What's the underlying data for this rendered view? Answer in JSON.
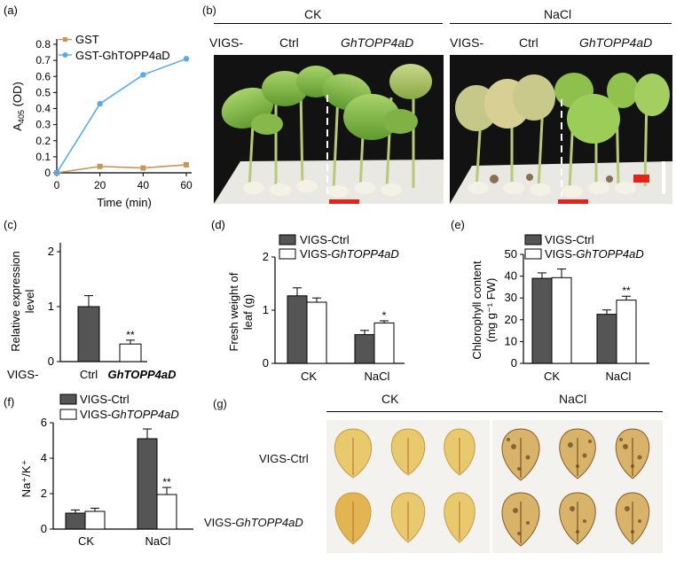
{
  "panels": {
    "a": {
      "label": "(a)",
      "chart_data": {
        "type": "line",
        "x": [
          0,
          20,
          40,
          60
        ],
        "series": [
          {
            "name": "GST",
            "values": [
              0.0,
              0.04,
              0.03,
              0.05
            ],
            "color": "#c8955a"
          },
          {
            "name": "GST-GhTOPP4aD",
            "values": [
              0.0,
              0.43,
              0.61,
              0.71
            ],
            "color": "#5aa8f0"
          }
        ],
        "xlabel": "Time (min)",
        "ylabel_main": "A",
        "ylabel_sub": "405",
        "ylabel_tail": " (OD)",
        "xticks": [
          "0",
          "20",
          "40",
          "60"
        ],
        "yticks": [
          "0",
          "0.1",
          "0.2",
          "0.3",
          "0.4",
          "0.5",
          "0.6",
          "0.7",
          "0.8"
        ],
        "ylim": [
          0,
          0.8
        ],
        "xlim": [
          0,
          60
        ]
      }
    },
    "b": {
      "label": "(b)",
      "ck_title": "CK",
      "nacl_title": "NaCl",
      "vigs": "VIGS-",
      "ctrl": "Ctrl",
      "gene": "GhTOPP4aD"
    },
    "c": {
      "label": "(c)",
      "chart_data": {
        "type": "bar",
        "categories": [
          "Ctrl",
          "GhTOPP4aD"
        ],
        "values": [
          1.0,
          0.32
        ],
        "errors": [
          0.2,
          0.07
        ],
        "significance": [
          "",
          "**"
        ],
        "prefix": "VIGS-",
        "ylabel_line1": "Relative expression",
        "ylabel_line2": "level",
        "yticks": [
          "0",
          "1",
          "2"
        ],
        "ylim": [
          0,
          2
        ],
        "colors": [
          "#555555",
          "#ffffff"
        ]
      }
    },
    "d": {
      "label": "(d)",
      "chart_data": {
        "type": "bar",
        "categories": [
          "CK",
          "NaCl"
        ],
        "series": [
          {
            "name": "VIGS-Ctrl",
            "values": [
              1.27,
              0.54
            ],
            "errors": [
              0.15,
              0.08
            ],
            "significance": [
              "",
              ""
            ]
          },
          {
            "name": "VIGS-GhTOPP4aD",
            "values": [
              1.15,
              0.76
            ],
            "errors": [
              0.08,
              0.04
            ],
            "significance": [
              "",
              "*"
            ]
          }
        ],
        "ylabel_line1": "Fresh weight of",
        "ylabel_line2": "leaf (g)",
        "yticks": [
          "0",
          "1",
          "2"
        ],
        "ylim": [
          0,
          2
        ]
      }
    },
    "e": {
      "label": "(e)",
      "chart_data": {
        "type": "bar",
        "categories": [
          "CK",
          "NaCl"
        ],
        "series": [
          {
            "name": "VIGS-Ctrl",
            "values": [
              39,
              22.5
            ],
            "errors": [
              2.5,
              2
            ],
            "significance": [
              "",
              ""
            ]
          },
          {
            "name": "VIGS-GhTOPP4aD",
            "values": [
              39.3,
              29
            ],
            "errors": [
              4,
              1.8
            ],
            "significance": [
              "",
              "**"
            ]
          }
        ],
        "ylabel_line1": "Chlorophyll content",
        "ylabel_line2": "(mg g⁻¹ FW)",
        "yticks": [
          "0",
          "10",
          "20",
          "30",
          "40",
          "50"
        ],
        "ylim": [
          0,
          50
        ]
      }
    },
    "f": {
      "label": "(f)",
      "chart_data": {
        "type": "bar",
        "categories": [
          "CK",
          "NaCl"
        ],
        "series": [
          {
            "name": "VIGS-Ctrl",
            "values": [
              0.9,
              5.1
            ],
            "errors": [
              0.18,
              0.55
            ],
            "significance": [
              "",
              ""
            ]
          },
          {
            "name": "VIGS-GhTOPP4aD",
            "values": [
              1.0,
              1.95
            ],
            "errors": [
              0.18,
              0.4
            ],
            "significance": [
              "",
              "**"
            ]
          }
        ],
        "ylabel": "Na⁺/K⁺",
        "yticks": [
          "0",
          "2",
          "4",
          "6"
        ],
        "ylim": [
          0,
          6
        ]
      }
    },
    "g": {
      "label": "(g)",
      "ck_title": "CK",
      "nacl_title": "NaCl",
      "row1": "VIGS-Ctrl",
      "row2_prefix": "VIGS-",
      "row2_gene": "GhTOPP4aD"
    }
  },
  "legend": {
    "ctrl": "VIGS-Ctrl",
    "prefix": "VIGS-",
    "gene": "GhTOPP4aD"
  },
  "colors": {
    "dark_bar": "#555555",
    "light_bar": "#ffffff",
    "gst": "#c8955a",
    "gst_fusion": "#5aa8f0"
  }
}
